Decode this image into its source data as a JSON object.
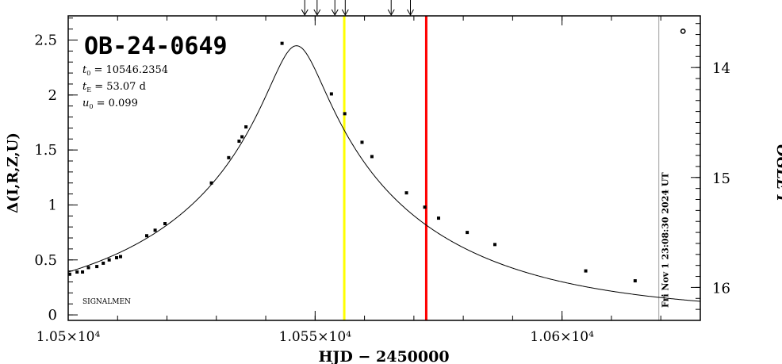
{
  "chart_data": {
    "type": "scatter",
    "title": "OB-24-0649",
    "params": [
      {
        "sym": "t",
        "sub": "0",
        "eq": " = 10546.2354"
      },
      {
        "sym": "t",
        "sub": "E",
        "eq": " = 53.07 d"
      },
      {
        "sym": "u",
        "sub": "0",
        "eq": " = 0.099"
      }
    ],
    "xlabel": "HJD − 2450000",
    "ylabel": "Δ(I,R,Z,U)",
    "ylabel_right": "OGLE I",
    "xlim": [
      10500,
      10628
    ],
    "ylim": [
      -0.05,
      2.72
    ],
    "x_ticks": [
      {
        "value": 10500,
        "label": "1.05×10⁴"
      },
      {
        "value": 10550,
        "label": "1.055×10⁴"
      },
      {
        "value": 10600,
        "label": "1.06×10⁴"
      }
    ],
    "y_ticks": [
      {
        "value": 0,
        "label": "0"
      },
      {
        "value": 0.5,
        "label": "0.5"
      },
      {
        "value": 1,
        "label": "1"
      },
      {
        "value": 1.5,
        "label": "1.5"
      },
      {
        "value": 2,
        "label": "2"
      },
      {
        "value": 2.5,
        "label": "2.5"
      }
    ],
    "y_ticks_right": [
      {
        "value": 14,
        "label": "14"
      },
      {
        "value": 15,
        "label": "15"
      },
      {
        "value": 16,
        "label": "16"
      }
    ],
    "right_mag_ref": {
      "base_mag": 16.25,
      "delta_per_mag": 1.0
    },
    "model": {
      "t0": 10546.2354,
      "tE": 53.07,
      "u0": 0.099,
      "amp_scale": 0.9735
    },
    "points": [
      {
        "x": 10500.3,
        "y": 0.37
      },
      {
        "x": 10501.8,
        "y": 0.39
      },
      {
        "x": 10502.9,
        "y": 0.39
      },
      {
        "x": 10504.1,
        "y": 0.43
      },
      {
        "x": 10505.8,
        "y": 0.44
      },
      {
        "x": 10507.1,
        "y": 0.47
      },
      {
        "x": 10508.3,
        "y": 0.5
      },
      {
        "x": 10509.8,
        "y": 0.52
      },
      {
        "x": 10510.6,
        "y": 0.53
      },
      {
        "x": 10515.9,
        "y": 0.72
      },
      {
        "x": 10517.6,
        "y": 0.77
      },
      {
        "x": 10519.6,
        "y": 0.83
      },
      {
        "x": 10529.0,
        "y": 1.2
      },
      {
        "x": 10532.5,
        "y": 1.43
      },
      {
        "x": 10534.6,
        "y": 1.58
      },
      {
        "x": 10535.2,
        "y": 1.62
      },
      {
        "x": 10536.0,
        "y": 1.71
      },
      {
        "x": 10543.3,
        "y": 2.47
      },
      {
        "x": 10553.3,
        "y": 2.01
      },
      {
        "x": 10556.0,
        "y": 1.83
      },
      {
        "x": 10559.5,
        "y": 1.57
      },
      {
        "x": 10561.5,
        "y": 1.44
      },
      {
        "x": 10568.5,
        "y": 1.11
      },
      {
        "x": 10572.2,
        "y": 0.98
      },
      {
        "x": 10575.0,
        "y": 0.88
      },
      {
        "x": 10580.8,
        "y": 0.75
      },
      {
        "x": 10586.4,
        "y": 0.64
      },
      {
        "x": 10604.8,
        "y": 0.4
      },
      {
        "x": 10614.8,
        "y": 0.31
      }
    ],
    "open_point": {
      "x": 10624.5,
      "y": 2.58
    },
    "vlines": [
      {
        "x": 10555.9,
        "color": "#ffff00",
        "width": 3
      },
      {
        "x": 10572.5,
        "color": "#ff0000",
        "width": 3
      },
      {
        "x": 10619.6,
        "color": "#a0a0a0",
        "width": 1
      }
    ],
    "arrows_x": [
      10547.9,
      10550.4,
      10554.0,
      10556.1,
      10565.4,
      10569.3
    ],
    "timestamp": "Fri Nov  1 23:08:30 2024 UT",
    "watermark": "SIGNALMEN"
  }
}
